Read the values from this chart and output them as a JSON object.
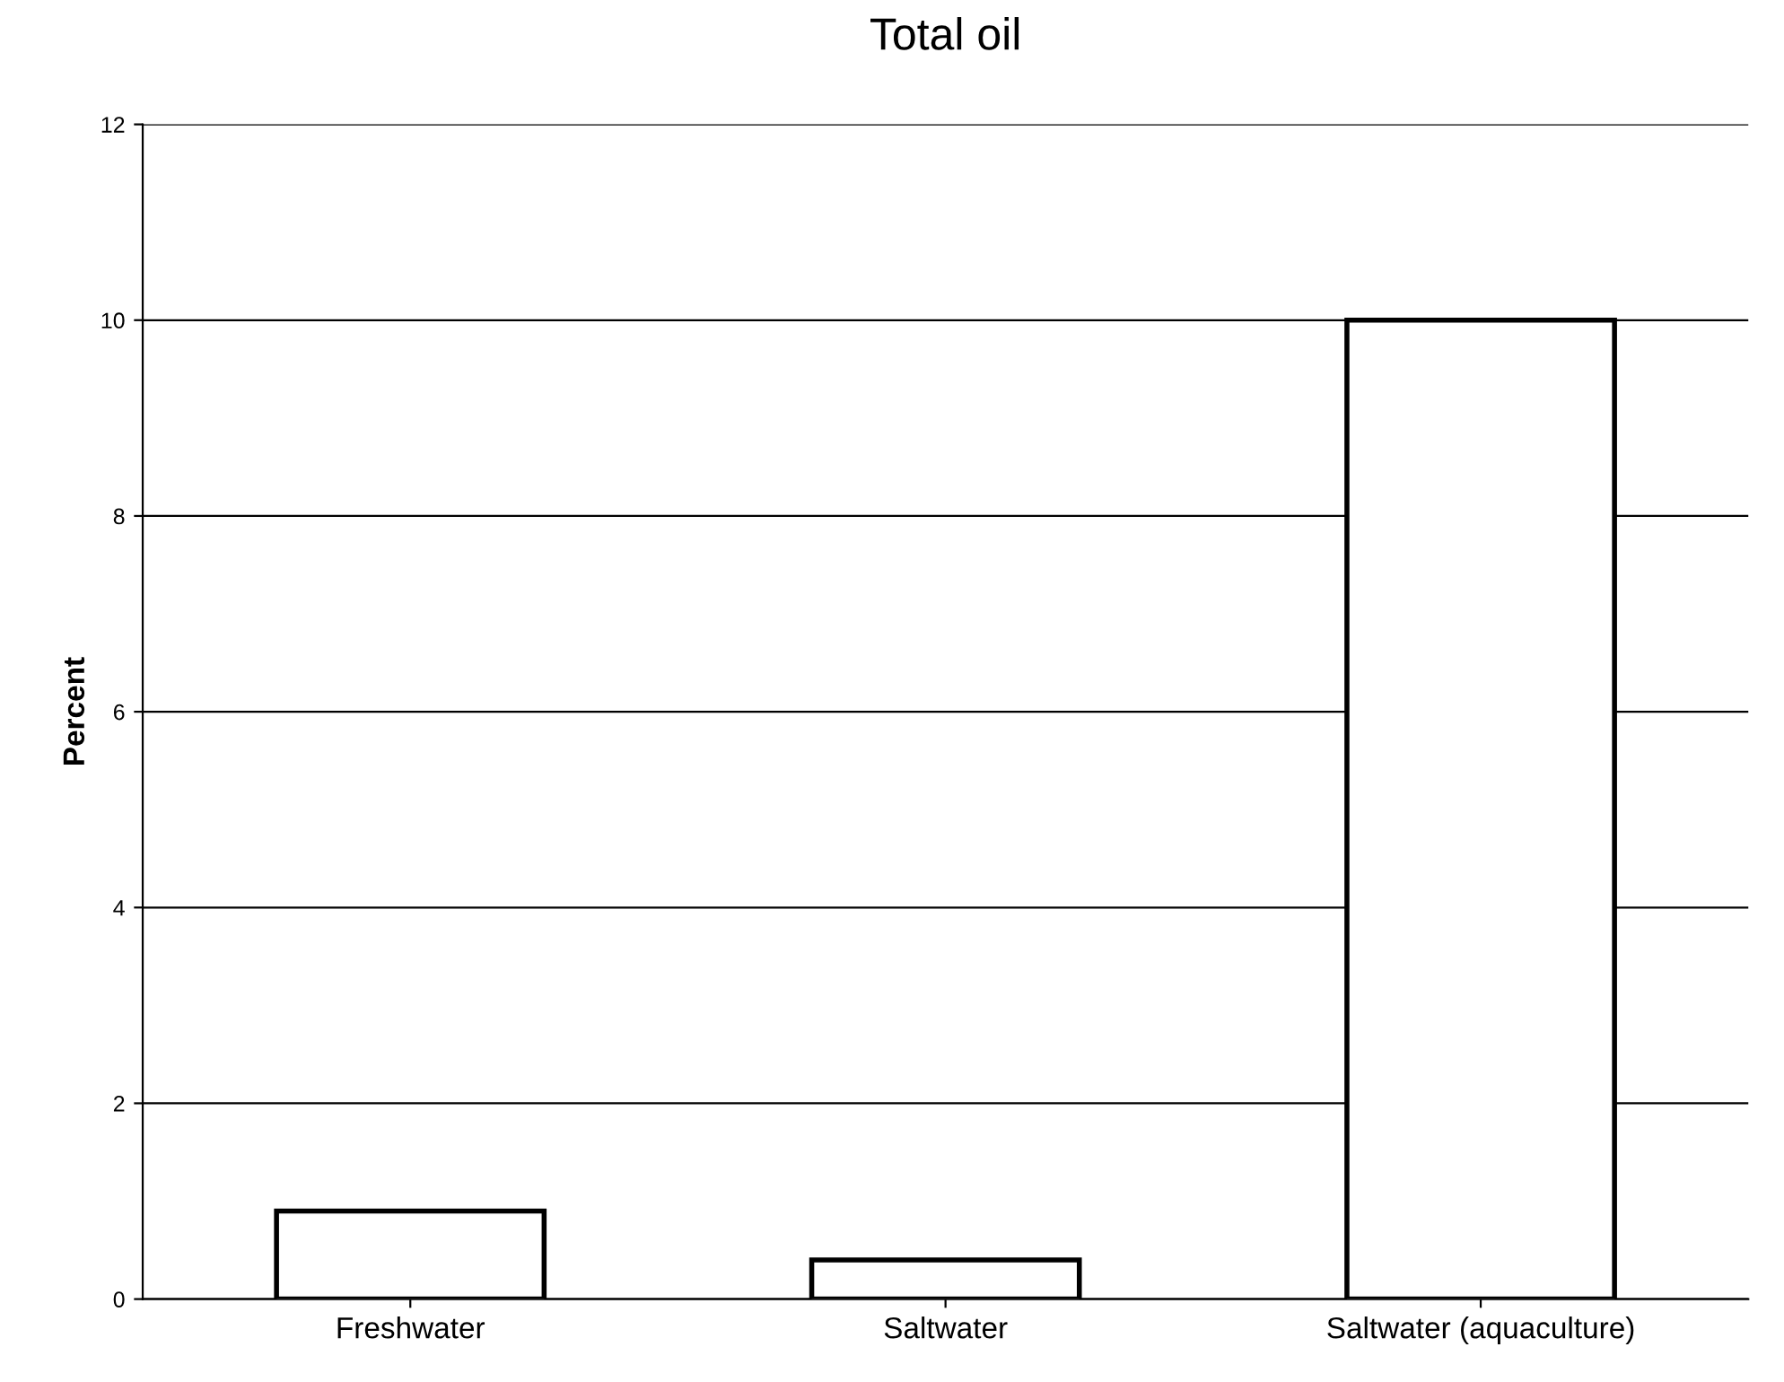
{
  "chart_data": {
    "type": "bar",
    "title": "Total oil",
    "ylabel": "Percent",
    "categories": [
      "Freshwater",
      "Saltwater",
      "Saltwater (aquaculture)"
    ],
    "values": [
      0.9,
      0.4,
      10.0
    ],
    "color": "#ffffff",
    "ylim": [
      0,
      12
    ],
    "yticks": [
      0,
      2,
      4,
      6,
      8,
      10,
      12
    ],
    "grid": "y",
    "legend": false
  }
}
